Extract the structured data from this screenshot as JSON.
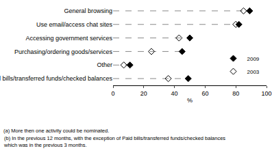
{
  "chart_data": {
    "type": "dot",
    "orientation": "horizontal",
    "categories": [
      "General browsing",
      "Use email/access chat sites",
      "Accessing government services",
      "Purchasing/ordering goods/services",
      "Other",
      "Paid bills/transferred funds/checked balances"
    ],
    "series": [
      {
        "name": "2009",
        "color": "#000000",
        "marker": "diamond",
        "values": [
          89,
          82,
          50,
          45,
          11,
          49
        ]
      },
      {
        "name": "2003",
        "color": "#000000",
        "marker": "diamond-open",
        "values": [
          85,
          80,
          43,
          25,
          7,
          36
        ]
      }
    ],
    "x_label": "%",
    "xlim": [
      0,
      100
    ],
    "xticks": [
      0,
      20,
      40,
      60,
      80,
      100
    ],
    "grid": false,
    "legend": "lower right",
    "line_style": "dash",
    "annotations": [
      "(a) More then one activity could be nominated.",
      "(b) In the previous 12 months, with the exception of Paid bills/transferred funds/checked balances\nwhich was in the previous 3 months."
    ]
  }
}
